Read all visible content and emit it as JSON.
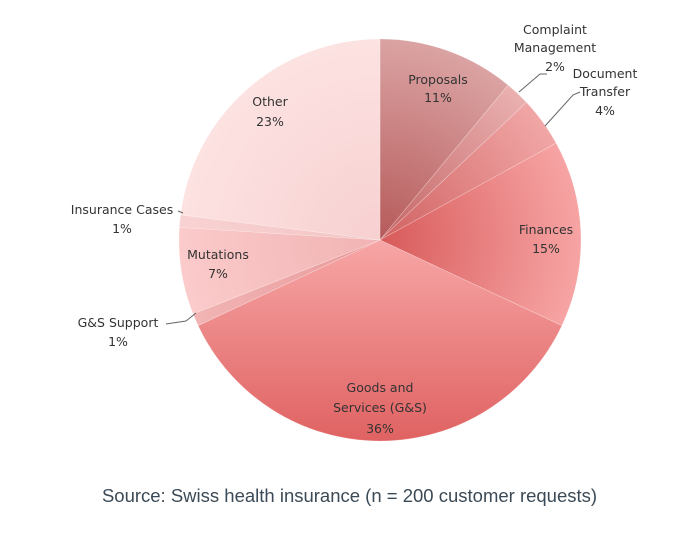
{
  "chart_data": {
    "type": "pie",
    "title": "",
    "slices": [
      {
        "label": "Proposals",
        "value": 11,
        "display": "11%",
        "colors": [
          "#b65a5a",
          "#dba3a3"
        ]
      },
      {
        "label": "Complaint Management",
        "value": 2,
        "display": "2%",
        "colors": [
          "#c46464",
          "#eab0b0"
        ]
      },
      {
        "label": "Document Transfer",
        "value": 4,
        "display": "4%",
        "colors": [
          "#d06262",
          "#f1a6a6"
        ]
      },
      {
        "label": "Finances",
        "value": 15,
        "display": "15%",
        "colors": [
          "#d85a5a",
          "#f7a4a4"
        ]
      },
      {
        "label": "Goods and Services (G&S)",
        "value": 36,
        "display": "36%",
        "colors": [
          "#f7a6a6",
          "#e06262"
        ]
      },
      {
        "label": "G&S Support",
        "value": 1,
        "display": "1%",
        "colors": [
          "#e89a9a",
          "#f2b4b4"
        ]
      },
      {
        "label": "Mutations",
        "value": 7,
        "display": "7%",
        "colors": [
          "#f1b3b3",
          "#fbcaca"
        ]
      },
      {
        "label": "Insurance Cases",
        "value": 1,
        "display": "1%",
        "colors": [
          "#f4c4c4",
          "#f8d2d2"
        ]
      },
      {
        "label": "Other",
        "value": 23,
        "display": "23%",
        "colors": [
          "#f7d0d0",
          "#fde2e2"
        ]
      }
    ],
    "start_angle": "top",
    "direction": "clockwise",
    "legend": "none"
  },
  "caption": "Source: Swiss health insurance (n = 200 customer requests)"
}
